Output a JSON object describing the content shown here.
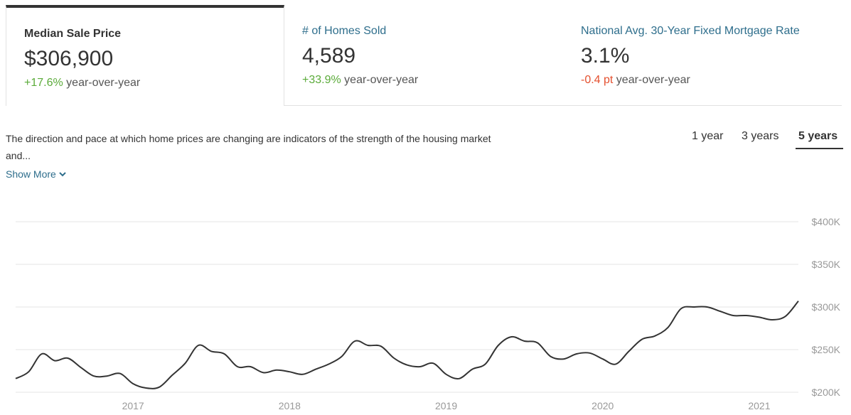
{
  "stats": [
    {
      "title": "Median Sale Price",
      "value": "$306,900",
      "change": "+17.6%",
      "change_suffix": " year-over-year",
      "active": true,
      "trend": "positive"
    },
    {
      "title": "# of Homes Sold",
      "value": "4,589",
      "change": "+33.9%",
      "change_suffix": " year-over-year",
      "active": false,
      "trend": "positive"
    },
    {
      "title": "National Avg. 30-Year Fixed Mortgage Rate",
      "value": "3.1%",
      "change": "-0.4 pt",
      "change_suffix": " year-over-year",
      "active": false,
      "trend": "negative"
    }
  ],
  "description": {
    "text": "The direction and pace at which home prices are changing are indicators of the strength of the housing market and...",
    "show_more": "Show More"
  },
  "range_tabs": [
    {
      "label": "1 year",
      "active": false
    },
    {
      "label": "3 years",
      "active": false
    },
    {
      "label": "5 years",
      "active": true
    }
  ],
  "colors": {
    "positive": "#5bab3a",
    "negative": "#e4502f",
    "link": "#2e6e8c",
    "line": "#333333",
    "grid": "#e6e6e6"
  },
  "chart_data": {
    "type": "line",
    "title": "",
    "xlabel": "",
    "ylabel": "",
    "ylim": [
      200000,
      400000
    ],
    "yticks": [
      200000,
      250000,
      300000,
      350000,
      400000
    ],
    "ytick_labels": [
      "$200K",
      "$250K",
      "$300K",
      "$350K",
      "$400K"
    ],
    "xticks": [
      2017,
      2018,
      2019,
      2020,
      2021
    ],
    "xtick_labels": [
      "2017",
      "2018",
      "2019",
      "2020",
      "2021"
    ],
    "xlim": [
      2016.25,
      2021.25
    ],
    "grid": true,
    "series": [
      {
        "x": [
          2016.25,
          2016.333,
          2016.417,
          2016.5,
          2016.583,
          2016.667,
          2016.75,
          2016.833,
          2016.917,
          2017.0,
          2017.083,
          2017.167,
          2017.25,
          2017.333,
          2017.417,
          2017.5,
          2017.583,
          2017.667,
          2017.75,
          2017.833,
          2017.917,
          2018.0,
          2018.083,
          2018.167,
          2018.25,
          2018.333,
          2018.417,
          2018.5,
          2018.583,
          2018.667,
          2018.75,
          2018.833,
          2018.917,
          2019.0,
          2019.083,
          2019.167,
          2019.25,
          2019.333,
          2019.417,
          2019.5,
          2019.583,
          2019.667,
          2019.75,
          2019.833,
          2019.917,
          2020.0,
          2020.083,
          2020.167,
          2020.25,
          2020.333,
          2020.417,
          2020.5,
          2020.583,
          2020.667,
          2020.75,
          2020.833,
          2020.917,
          2021.0,
          2021.083,
          2021.167,
          2021.25
        ],
        "y": [
          216000,
          224000,
          245000,
          237000,
          240000,
          229000,
          219000,
          219000,
          222000,
          210000,
          205000,
          206000,
          220000,
          234000,
          255000,
          248000,
          245000,
          230000,
          230000,
          223000,
          226000,
          224000,
          221000,
          227000,
          233000,
          242000,
          260000,
          255000,
          254000,
          240000,
          232000,
          230000,
          234000,
          221000,
          216000,
          227000,
          233000,
          255000,
          265000,
          260000,
          258000,
          242000,
          239000,
          245000,
          246000,
          239000,
          233000,
          248000,
          262000,
          266000,
          276000,
          298000,
          300000,
          300000,
          295000,
          290000,
          290000,
          288000,
          285000,
          289000,
          307000
        ]
      }
    ]
  }
}
